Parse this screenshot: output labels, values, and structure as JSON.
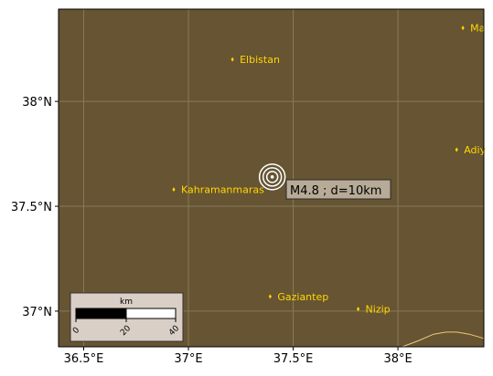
{
  "map": {
    "background_color": "#665433",
    "grid_color": "#8a7a58",
    "city_color": "#ffd700",
    "coast_color": "#f0c878"
  },
  "axes": {
    "x_ticks": [
      {
        "value": 36.5,
        "label": "36.5°E"
      },
      {
        "value": 37.0,
        "label": "37°E"
      },
      {
        "value": 37.5,
        "label": "37.5°E"
      },
      {
        "value": 38.0,
        "label": "38°E"
      }
    ],
    "y_ticks": [
      {
        "value": 38.0,
        "label": "38°N"
      },
      {
        "value": 37.5,
        "label": "37.5°N"
      },
      {
        "value": 37.0,
        "label": "37°N"
      }
    ],
    "xlim": [
      36.38,
      38.41
    ],
    "ylim": [
      36.83,
      38.44
    ]
  },
  "cities": [
    {
      "name": "Elbistan",
      "lon": 37.21,
      "lat": 38.2
    },
    {
      "name": "Kahramanmaras",
      "lon": 36.93,
      "lat": 37.58
    },
    {
      "name": "Gaziantep",
      "lon": 37.39,
      "lat": 37.07
    },
    {
      "name": "Nizip",
      "lon": 37.81,
      "lat": 37.01
    },
    {
      "name": "Ma",
      "lon": 38.31,
      "lat": 38.35
    },
    {
      "name": "Adiy",
      "lon": 38.28,
      "lat": 37.77
    }
  ],
  "event": {
    "lon": 37.4,
    "lat": 37.64,
    "label": "M4.8 ; d=10km"
  },
  "coastline": [
    [
      38.02,
      36.83
    ],
    [
      38.1,
      36.86
    ],
    [
      38.17,
      36.89
    ],
    [
      38.23,
      36.9
    ],
    [
      38.28,
      36.9
    ],
    [
      38.34,
      36.89
    ],
    [
      38.41,
      36.87
    ]
  ],
  "scale_bar": {
    "unit_label": "km",
    "tick_labels": [
      "0",
      "20",
      "40"
    ]
  }
}
